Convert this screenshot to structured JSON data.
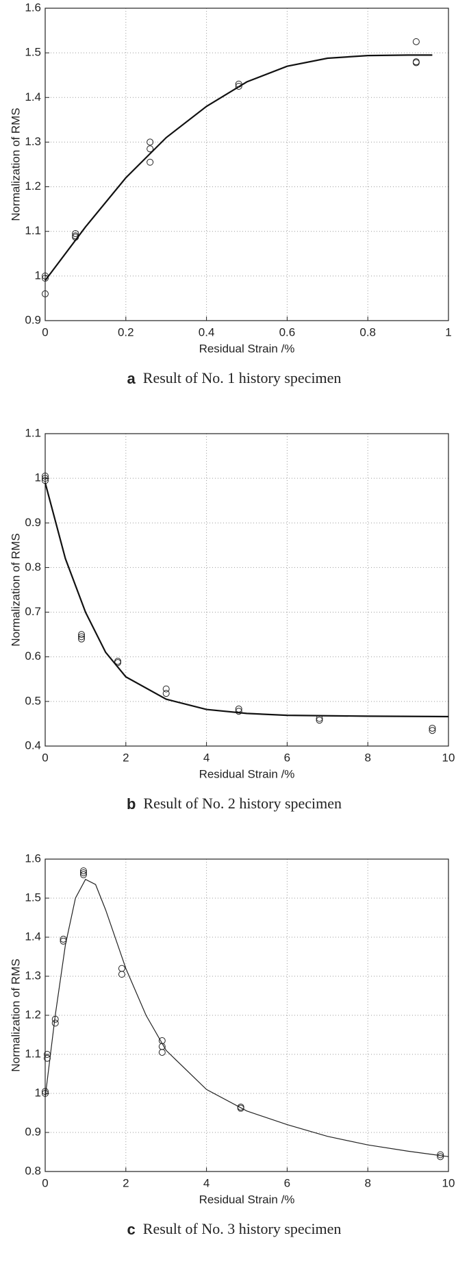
{
  "chart_data": [
    {
      "type": "scatter",
      "x_label": "Residual Strain /%",
      "y_label": "Normalization of RMS",
      "caption_label": "a",
      "caption": "Result of No. 1 history specimen",
      "xlim": [
        0,
        1
      ],
      "xticks": [
        0,
        0.2,
        0.4,
        0.6,
        0.8,
        1
      ],
      "ylim": [
        0.9,
        1.6
      ],
      "yticks": [
        0.9,
        1,
        1.1,
        1.2,
        1.3,
        1.4,
        1.5,
        1.6
      ],
      "grid": true,
      "series": [
        {
          "type": "scatter",
          "color": "#222222",
          "x": [
            0,
            0,
            0,
            0.075,
            0.075,
            0.075,
            0.26,
            0.26,
            0.26,
            0.48,
            0.48,
            0.92,
            0.92,
            0.92
          ],
          "values": [
            1.0,
            0.995,
            0.96,
            1.095,
            1.09,
            1.087,
            1.3,
            1.285,
            1.255,
            1.43,
            1.425,
            1.525,
            1.48,
            1.478
          ]
        },
        {
          "type": "line",
          "color": "#111111",
          "x": [
            0,
            0.1,
            0.2,
            0.3,
            0.4,
            0.5,
            0.6,
            0.7,
            0.8,
            0.9,
            0.96
          ],
          "values": [
            0.99,
            1.11,
            1.22,
            1.31,
            1.38,
            1.435,
            1.47,
            1.488,
            1.494,
            1.495,
            1.495
          ]
        }
      ]
    },
    {
      "type": "scatter",
      "x_label": "Residual Strain /%",
      "y_label": "Normalization of RMS",
      "caption_label": "b",
      "caption": "Result of No. 2 history specimen",
      "xlim": [
        0,
        10
      ],
      "xticks": [
        0,
        2,
        4,
        6,
        8,
        10
      ],
      "ylim": [
        0.4,
        1.1
      ],
      "yticks": [
        0.4,
        0.5,
        0.6,
        0.7,
        0.8,
        0.9,
        1,
        1.1
      ],
      "grid": true,
      "series": [
        {
          "type": "scatter",
          "color": "#222222",
          "x": [
            0,
            0,
            0,
            0.9,
            0.9,
            0.9,
            1.8,
            1.8,
            3,
            3,
            4.8,
            4.8,
            6.8,
            6.8,
            9.6,
            9.6
          ],
          "values": [
            1.0,
            1.005,
            0.995,
            0.65,
            0.645,
            0.64,
            0.59,
            0.587,
            0.528,
            0.518,
            0.483,
            0.478,
            0.462,
            0.458,
            0.44,
            0.435
          ]
        },
        {
          "type": "line",
          "color": "#111111",
          "x": [
            0,
            0.5,
            1,
            1.5,
            2,
            3,
            4,
            5,
            6,
            8,
            10
          ],
          "values": [
            0.99,
            0.82,
            0.7,
            0.61,
            0.555,
            0.505,
            0.482,
            0.473,
            0.469,
            0.467,
            0.466
          ]
        }
      ]
    },
    {
      "type": "scatter",
      "x_label": "Residual Strain /%",
      "y_label": "Normalization of RMS",
      "caption_label": "c",
      "caption": "Result of No. 3 history specimen",
      "xlim": [
        0,
        10
      ],
      "xticks": [
        0,
        2,
        4,
        6,
        8,
        10
      ],
      "ylim": [
        0.8,
        1.6
      ],
      "yticks": [
        0.8,
        0.9,
        1,
        1.1,
        1.2,
        1.3,
        1.4,
        1.5,
        1.6
      ],
      "grid": true,
      "series": [
        {
          "type": "scatter",
          "color": "#222222",
          "x": [
            0,
            0,
            0.05,
            0.05,
            0.25,
            0.25,
            0.45,
            0.45,
            0.95,
            0.95,
            0.95,
            1.9,
            1.9,
            2.9,
            2.9,
            2.9,
            4.85,
            4.85,
            9.8,
            9.8
          ],
          "values": [
            1.005,
            1.0,
            1.1,
            1.09,
            1.19,
            1.18,
            1.395,
            1.39,
            1.57,
            1.565,
            1.56,
            1.32,
            1.305,
            1.135,
            1.12,
            1.105,
            0.965,
            0.962,
            0.843,
            0.838
          ]
        },
        {
          "type": "line",
          "color": "#222222",
          "x": [
            0,
            0.25,
            0.5,
            0.75,
            1,
            1.25,
            1.5,
            2,
            2.5,
            3,
            4,
            5,
            6,
            7,
            8,
            9,
            10
          ],
          "values": [
            0.99,
            1.2,
            1.38,
            1.5,
            1.548,
            1.535,
            1.47,
            1.32,
            1.2,
            1.11,
            1.01,
            0.955,
            0.92,
            0.89,
            0.868,
            0.852,
            0.838
          ]
        }
      ]
    }
  ]
}
